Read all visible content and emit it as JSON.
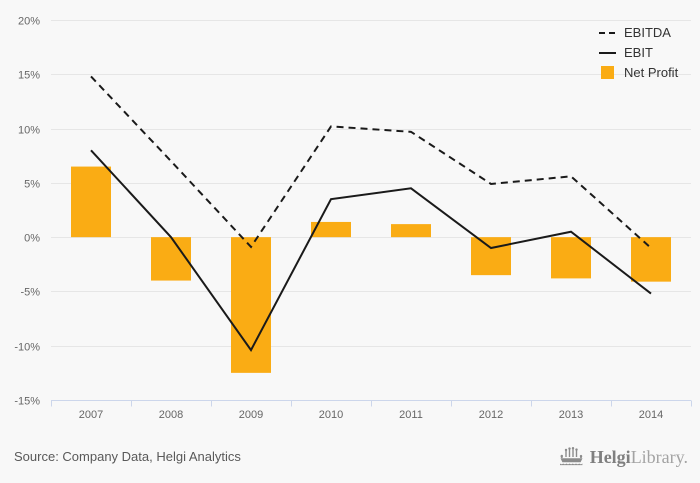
{
  "chart_data": {
    "type": "combo",
    "title": "",
    "categories": [
      "2007",
      "2008",
      "2009",
      "2010",
      "2011",
      "2012",
      "2013",
      "2014"
    ],
    "series": [
      {
        "name": "EBITDA",
        "type": "line",
        "line_style": "dashed",
        "color": "#1a1a1a",
        "values": [
          14.8,
          7.0,
          -0.9,
          10.2,
          9.7,
          4.9,
          5.6,
          -1.0
        ]
      },
      {
        "name": "EBIT",
        "type": "line",
        "line_style": "solid",
        "color": "#1a1a1a",
        "values": [
          8.0,
          0.0,
          -10.4,
          3.5,
          4.5,
          -1.0,
          0.5,
          -5.2
        ]
      },
      {
        "name": "Net Profit",
        "type": "bar",
        "color": "#faac14",
        "values": [
          6.5,
          -4.0,
          -12.5,
          1.4,
          1.2,
          -3.5,
          -3.8,
          -4.1
        ]
      }
    ],
    "ylim": [
      -15,
      20
    ],
    "yticks": [
      "20%",
      "15%",
      "10%",
      "5%",
      "0%",
      "-5%",
      "-10%",
      "-15%"
    ],
    "ytick_suffix": "%",
    "grid": true,
    "legend_position": "top-right"
  },
  "footer": {
    "source_text": "Source: Company Data, Helgi Analytics",
    "logo": {
      "icon": "viking-ship-icon",
      "text_bold": "Helgi",
      "text_light": "Library."
    }
  },
  "colors": {
    "background": "#f8f8f8",
    "gridline": "#e6e6e6",
    "axis_line": "#ccd6eb",
    "tick_label": "#666666",
    "legend_text": "#333333",
    "bar": "#faac14",
    "line": "#1a1a1a",
    "source_text": "#595959",
    "logo_gray": "#8b8b8b"
  }
}
